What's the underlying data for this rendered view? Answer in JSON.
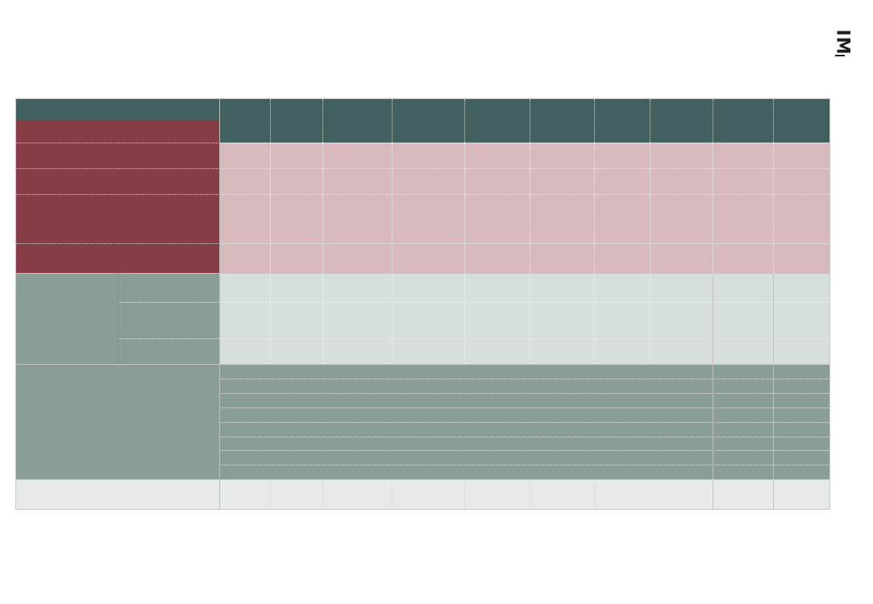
{
  "colors": {
    "header_dark": "#426060",
    "maroon": "#873d45",
    "pink": "#d8babe",
    "sage": "#899f96",
    "light_gray": "#d7dfdc",
    "pale": "#e6ebe9",
    "border": "#c5c5c5"
  },
  "logo": {
    "text": "IM",
    "icon": "logo-mark"
  },
  "table": {
    "header_cells": [
      "",
      "",
      "",
      "",
      "",
      "",
      "",
      "",
      "",
      ""
    ],
    "section_maroon_rows": [
      "",
      "",
      "",
      ""
    ],
    "section_gray_subrows": [
      "",
      "",
      ""
    ],
    "section_sage_rows": [
      "",
      "",
      "",
      "",
      "",
      "",
      "",
      ""
    ],
    "footer_row": ""
  }
}
